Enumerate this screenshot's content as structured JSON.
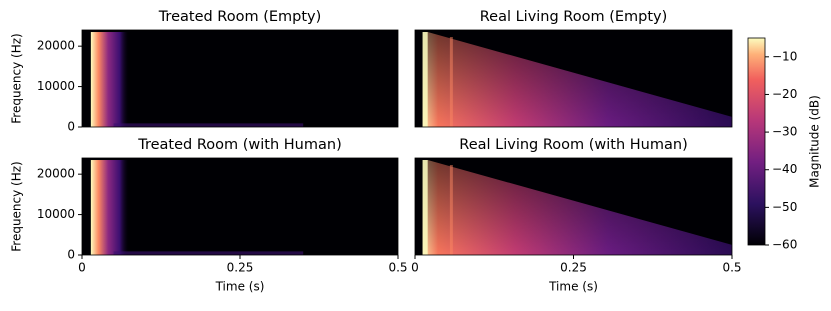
{
  "chart_data": [
    {
      "type": "spectrogram",
      "title": "Treated Room (Empty)",
      "ylabel": "Frequency (Hz)",
      "xlim": [
        0,
        0.5
      ],
      "ylim": [
        0,
        24000
      ],
      "yticks": [
        0,
        10000,
        20000
      ]
    },
    {
      "type": "spectrogram",
      "title": "Real Living Room (Empty)",
      "xlim": [
        0,
        0.5
      ],
      "ylim": [
        0,
        24000
      ]
    },
    {
      "type": "spectrogram",
      "title": "Treated Room (with Human)",
      "ylabel": "Frequency (Hz)",
      "xlabel": "Time (s)",
      "xlim": [
        0,
        0.5
      ],
      "ylim": [
        0,
        24000
      ],
      "yticks": [
        0,
        10000,
        20000
      ],
      "xticks": [
        0,
        0.25,
        0.5
      ]
    },
    {
      "type": "spectrogram",
      "title": "Real Living Room (with Human)",
      "xlabel": "Time (s)",
      "xlim": [
        0,
        0.5
      ],
      "ylim": [
        0,
        24000
      ],
      "xticks": [
        0,
        0.25,
        0.5
      ]
    }
  ],
  "colorbar": {
    "label": "Magnitude (dB)",
    "colormap": "magma",
    "lim": [
      -60,
      -5
    ],
    "ticks": [
      {
        "value": -10,
        "label": "−10"
      },
      {
        "value": -20,
        "label": "−20"
      },
      {
        "value": -30,
        "label": "−30"
      },
      {
        "value": -40,
        "label": "−40"
      },
      {
        "value": -50,
        "label": "−50"
      },
      {
        "value": -60,
        "label": "−60"
      }
    ]
  }
}
